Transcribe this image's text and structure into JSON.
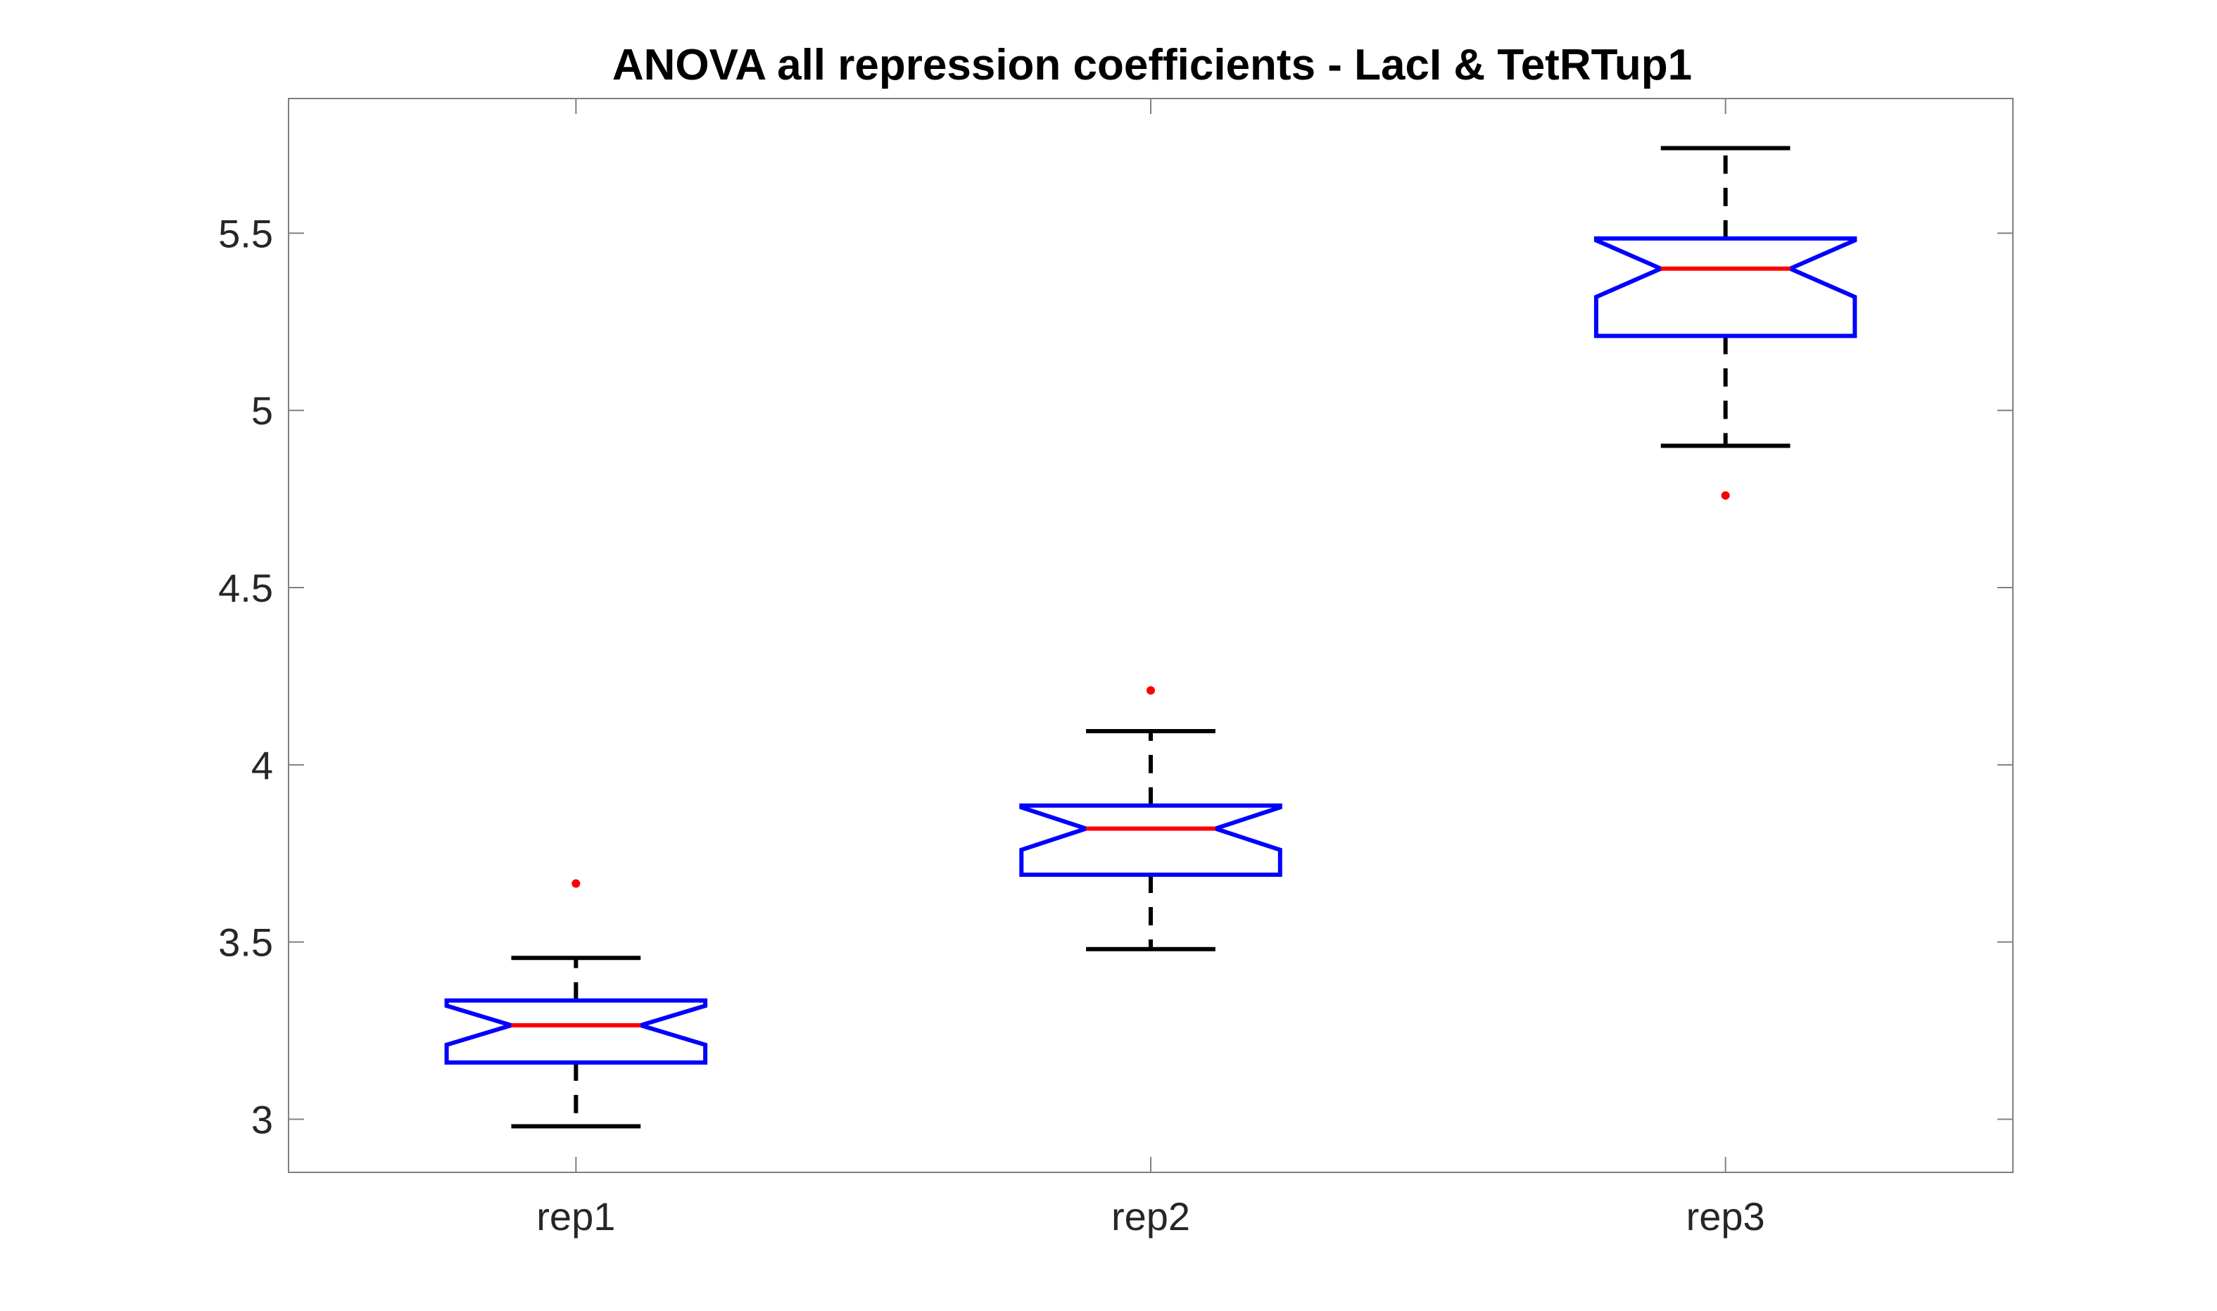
{
  "chart_data": {
    "type": "boxplot",
    "title": "ANOVA all repression coefficients - LacI & TetRTup1",
    "xlabel": "",
    "ylabel": "",
    "categories": [
      "rep1",
      "rep2",
      "rep3"
    ],
    "ylim": [
      2.85,
      5.88
    ],
    "yticks": [
      3,
      3.5,
      4,
      4.5,
      5,
      5.5
    ],
    "ytick_labels": [
      "3",
      "3.5",
      "4",
      "4.5",
      "5",
      "5.5"
    ],
    "notched": true,
    "grid": false,
    "boxes": [
      {
        "category": "rep1",
        "whisker_low": 2.98,
        "q1": 3.16,
        "notch_low": 3.21,
        "median": 3.265,
        "notch_high": 3.32,
        "q3": 3.335,
        "whisker_high": 3.455,
        "outliers": [
          3.665
        ]
      },
      {
        "category": "rep2",
        "whisker_low": 3.48,
        "q1": 3.69,
        "notch_low": 3.76,
        "median": 3.82,
        "notch_high": 3.88,
        "q3": 3.885,
        "whisker_high": 4.095,
        "outliers": [
          4.21
        ]
      },
      {
        "category": "rep3",
        "whisker_low": 4.9,
        "q1": 5.21,
        "notch_low": 5.32,
        "median": 5.4,
        "notch_high": 5.48,
        "q3": 5.485,
        "whisker_high": 5.74,
        "outliers": [
          4.76
        ]
      }
    ],
    "colors": {
      "box": "#0000ff",
      "median": "#ff0000",
      "whisker": "#000000",
      "outlier": "#ff0000",
      "axis": "#808080"
    }
  }
}
